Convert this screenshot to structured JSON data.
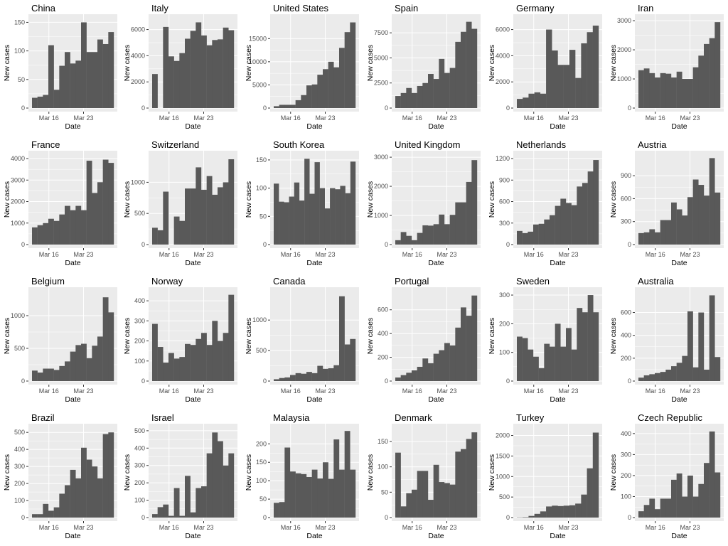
{
  "colors": {
    "panel_bg": "#ebebeb",
    "grid_major": "#ffffff",
    "bar": "#595959",
    "axis_text": "#4d4d4d",
    "label_text": "#000000"
  },
  "chart_data": [
    {
      "type": "bar",
      "title": "China",
      "xlabel": "Date",
      "ylabel": "New cases",
      "x_ticks": [
        "Mar 16",
        "Mar 23"
      ],
      "y_ticks": [
        0,
        50,
        100,
        150
      ],
      "ylim": [
        0,
        158
      ],
      "values": [
        18,
        20,
        23,
        110,
        32,
        74,
        98,
        78,
        83,
        150,
        98,
        98,
        120,
        112,
        133
      ]
    },
    {
      "type": "bar",
      "title": "Italy",
      "xlabel": "Date",
      "ylabel": "New cases",
      "x_ticks": [
        "Mar 16",
        "Mar 23"
      ],
      "y_ticks": [
        0,
        2000,
        4000,
        6000
      ],
      "ylim": [
        0,
        6900
      ],
      "values": [
        2600,
        0,
        6200,
        3950,
        3600,
        4200,
        5300,
        5900,
        6550,
        5550,
        4800,
        5200,
        5250,
        6150,
        5950
      ]
    },
    {
      "type": "bar",
      "title": "United States",
      "xlabel": "Date",
      "ylabel": "New cases",
      "x_ticks": [
        "Mar 16",
        "Mar 23"
      ],
      "y_ticks": [
        0,
        5000,
        10000,
        15000
      ],
      "ylim": [
        0,
        19500
      ],
      "values": [
        400,
        700,
        700,
        700,
        1700,
        2800,
        4900,
        5100,
        7200,
        8400,
        10000,
        8800,
        13000,
        16400,
        18500
      ]
    },
    {
      "type": "bar",
      "title": "Spain",
      "xlabel": "Date",
      "ylabel": "New cases",
      "x_ticks": [
        "Mar 16",
        "Mar 23"
      ],
      "y_ticks": [
        0,
        2500,
        5000,
        7500
      ],
      "ylim": [
        0,
        9000
      ],
      "values": [
        1200,
        1500,
        2000,
        1500,
        2200,
        2500,
        3400,
        2900,
        4900,
        3500,
        4000,
        6600,
        7600,
        8600,
        7900
      ]
    },
    {
      "type": "bar",
      "title": "Germany",
      "xlabel": "Date",
      "ylabel": "New cases",
      "x_ticks": [
        "Mar 16",
        "Mar 23"
      ],
      "y_ticks": [
        0,
        2000,
        4000,
        6000
      ],
      "ylim": [
        0,
        6900
      ],
      "values": [
        700,
        800,
        1100,
        1200,
        1100,
        6000,
        4400,
        3300,
        3300,
        4450,
        2300,
        4950,
        5800,
        6300
      ]
    },
    {
      "type": "bar",
      "title": "Iran",
      "xlabel": "Date",
      "ylabel": "New cases",
      "x_ticks": [
        "Mar 16",
        "Mar 23"
      ],
      "y_ticks": [
        0,
        1000,
        2000,
        3000
      ],
      "ylim": [
        0,
        3100
      ],
      "values": [
        1300,
        1360,
        1200,
        1050,
        1200,
        1180,
        1050,
        1250,
        1000,
        1000,
        1400,
        1800,
        2200,
        2400,
        2950
      ]
    },
    {
      "type": "bar",
      "title": "France",
      "xlabel": "Date",
      "ylabel": "New cases",
      "x_ticks": [
        "Mar 16",
        "Mar 23"
      ],
      "y_ticks": [
        0,
        1000,
        2000,
        3000,
        4000
      ],
      "ylim": [
        0,
        4200
      ],
      "values": [
        800,
        900,
        1000,
        1200,
        1100,
        1400,
        1800,
        1600,
        1800,
        1600,
        3900,
        2400,
        2900,
        3950,
        3800
      ]
    },
    {
      "type": "bar",
      "title": "Switzerland",
      "xlabel": "Date",
      "ylabel": "New cases",
      "x_ticks": [
        "Mar 16",
        "Mar 23"
      ],
      "y_ticks": [
        0,
        500,
        1000
      ],
      "ylim": [
        0,
        1450
      ],
      "values": [
        270,
        230,
        850,
        0,
        450,
        380,
        900,
        900,
        1240,
        880,
        1100,
        800,
        920,
        1000,
        1370
      ]
    },
    {
      "type": "bar",
      "title": "South Korea",
      "xlabel": "Date",
      "ylabel": "New cases",
      "x_ticks": [
        "Mar 16",
        "Mar 23"
      ],
      "y_ticks": [
        0,
        50,
        100,
        150
      ],
      "ylim": [
        0,
        160
      ],
      "values": [
        108,
        76,
        75,
        85,
        110,
        78,
        152,
        90,
        146,
        100,
        64,
        100,
        98,
        104,
        91,
        147
      ]
    },
    {
      "type": "bar",
      "title": "United Kingdom",
      "xlabel": "Date",
      "ylabel": "New cases",
      "x_ticks": [
        "Mar 16",
        "Mar 23"
      ],
      "y_ticks": [
        0,
        1000,
        2000,
        3000
      ],
      "ylim": [
        0,
        3100
      ],
      "values": [
        150,
        430,
        300,
        150,
        400,
        660,
        650,
        700,
        1030,
        700,
        1020,
        1450,
        1450,
        2150,
        2900
      ]
    },
    {
      "type": "bar",
      "title": "Netherlands",
      "xlabel": "Date",
      "ylabel": "New cases",
      "x_ticks": [
        "Mar 16",
        "Mar 23"
      ],
      "y_ticks": [
        0,
        300,
        600,
        900,
        1200
      ],
      "ylim": [
        0,
        1260
      ],
      "values": [
        190,
        160,
        180,
        280,
        290,
        350,
        410,
        540,
        640,
        580,
        550,
        810,
        860,
        1020,
        1180
      ]
    },
    {
      "type": "bar",
      "title": "Austria",
      "xlabel": "Date",
      "ylabel": "New cases",
      "x_ticks": [
        "Mar 16",
        "Mar 23"
      ],
      "y_ticks": [
        0,
        300,
        600,
        900
      ],
      "ylim": [
        0,
        1180
      ],
      "values": [
        150,
        160,
        200,
        160,
        320,
        320,
        550,
        460,
        380,
        620,
        850,
        780,
        640,
        1130,
        680
      ]
    },
    {
      "type": "bar",
      "title": "Belgium",
      "xlabel": "Date",
      "ylabel": "New cases",
      "x_ticks": [
        "Mar 16",
        "Mar 23"
      ],
      "y_ticks": [
        0,
        500,
        1000
      ],
      "ylim": [
        0,
        1380
      ],
      "values": [
        160,
        130,
        190,
        190,
        170,
        230,
        300,
        450,
        550,
        570,
        350,
        540,
        680,
        1280,
        1050
      ]
    },
    {
      "type": "bar",
      "title": "Norway",
      "xlabel": "Date",
      "ylabel": "New cases",
      "x_ticks": [
        "Mar 16",
        "Mar 23"
      ],
      "y_ticks": [
        0,
        100,
        200,
        300,
        400
      ],
      "ylim": [
        0,
        450
      ],
      "values": [
        285,
        170,
        92,
        140,
        112,
        120,
        185,
        180,
        210,
        240,
        180,
        300,
        200,
        240,
        430
      ]
    },
    {
      "type": "bar",
      "title": "Canada",
      "xlabel": "Date",
      "ylabel": "New cases",
      "x_ticks": [
        "Mar 16",
        "Mar 23"
      ],
      "y_ticks": [
        0,
        500,
        1000
      ],
      "ylim": [
        0,
        1480
      ],
      "values": [
        30,
        50,
        60,
        100,
        130,
        120,
        150,
        130,
        250,
        200,
        210,
        260,
        1390,
        600,
        690
      ]
    },
    {
      "type": "bar",
      "title": "Portugal",
      "xlabel": "Date",
      "ylabel": "New cases",
      "x_ticks": [
        "Mar 16",
        "Mar 23"
      ],
      "y_ticks": [
        0,
        200,
        400,
        600
      ],
      "ylim": [
        0,
        760
      ],
      "values": [
        30,
        50,
        70,
        90,
        120,
        190,
        150,
        230,
        260,
        320,
        300,
        450,
        620,
        550,
        720
      ]
    },
    {
      "type": "bar",
      "title": "Sweden",
      "xlabel": "Date",
      "ylabel": "New cases",
      "x_ticks": [
        "Mar 16",
        "Mar 23"
      ],
      "y_ticks": [
        0,
        100,
        200,
        300
      ],
      "ylim": [
        0,
        315
      ],
      "values": [
        155,
        150,
        110,
        85,
        45,
        130,
        120,
        200,
        120,
        185,
        110,
        255,
        240,
        300,
        240
      ]
    },
    {
      "type": "bar",
      "title": "Australia",
      "xlabel": "Date",
      "ylabel": "New cases",
      "x_ticks": [
        "Mar 16",
        "Mar 23"
      ],
      "y_ticks": [
        0,
        200,
        400,
        600
      ],
      "ylim": [
        0,
        790
      ],
      "values": [
        30,
        50,
        60,
        70,
        80,
        100,
        130,
        160,
        220,
        610,
        120,
        600,
        100,
        750,
        210
      ]
    },
    {
      "type": "bar",
      "title": "Brazil",
      "xlabel": "Date",
      "ylabel": "New cases",
      "x_ticks": [
        "Mar 16",
        "Mar 23"
      ],
      "y_ticks": [
        0,
        100,
        200,
        300,
        400,
        500
      ],
      "ylim": [
        0,
        530
      ],
      "values": [
        20,
        20,
        80,
        40,
        60,
        140,
        190,
        280,
        230,
        410,
        340,
        300,
        230,
        490,
        500
      ]
    },
    {
      "type": "bar",
      "title": "Israel",
      "xlabel": "Date",
      "ylabel": "New cases",
      "x_ticks": [
        "Mar 16",
        "Mar 23"
      ],
      "y_ticks": [
        0,
        100,
        200,
        300,
        400,
        500
      ],
      "ylim": [
        0,
        520
      ],
      "values": [
        20,
        60,
        75,
        10,
        170,
        10,
        240,
        30,
        170,
        180,
        370,
        490,
        440,
        300,
        370
      ]
    },
    {
      "type": "bar",
      "title": "Malaysia",
      "xlabel": "Date",
      "ylabel": "New cases",
      "x_ticks": [
        "Mar 16",
        "Mar 23"
      ],
      "y_ticks": [
        0,
        50,
        100,
        150,
        200
      ],
      "ylim": [
        0,
        245
      ],
      "values": [
        40,
        42,
        190,
        125,
        120,
        118,
        110,
        130,
        106,
        150,
        105,
        212,
        130,
        235,
        130
      ]
    },
    {
      "type": "bar",
      "title": "Denmark",
      "xlabel": "Date",
      "ylabel": "New cases",
      "x_ticks": [
        "Mar 16",
        "Mar 23"
      ],
      "y_ticks": [
        0,
        50,
        100,
        150
      ],
      "ylim": [
        0,
        178
      ],
      "values": [
        128,
        22,
        48,
        55,
        92,
        92,
        35,
        104,
        70,
        68,
        65,
        130,
        135,
        155,
        168
      ]
    },
    {
      "type": "bar",
      "title": "Turkey",
      "xlabel": "Date",
      "ylabel": "New cases",
      "x_ticks": [
        "Mar 16",
        "Mar 23"
      ],
      "y_ticks": [
        0,
        500,
        1000,
        1500,
        2000
      ],
      "ylim": [
        0,
        2200
      ],
      "values": [
        5,
        10,
        40,
        90,
        150,
        270,
        290,
        280,
        290,
        300,
        340,
        560,
        1200,
        2070
      ]
    },
    {
      "type": "bar",
      "title": "Czech Republic",
      "xlabel": "Date",
      "ylabel": "New cases",
      "x_ticks": [
        "Mar 16",
        "Mar 23"
      ],
      "y_ticks": [
        0,
        100,
        200,
        300,
        400
      ],
      "ylim": [
        0,
        430
      ],
      "values": [
        30,
        60,
        90,
        40,
        90,
        90,
        180,
        210,
        100,
        200,
        100,
        160,
        260,
        410,
        215
      ]
    }
  ]
}
